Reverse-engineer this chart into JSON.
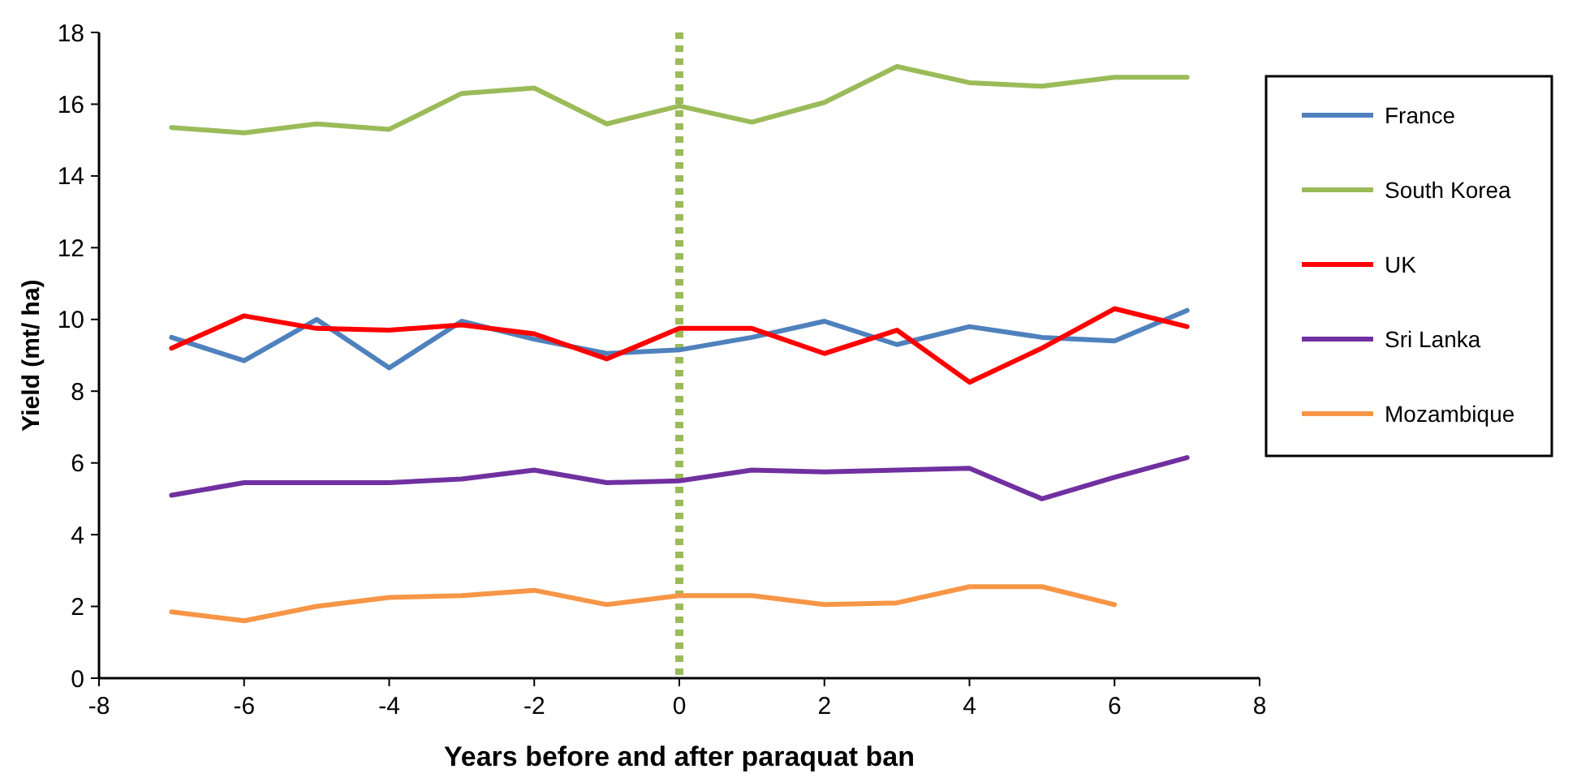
{
  "chart_data": {
    "type": "line",
    "xlabel": "Years before and after paraquat ban",
    "ylabel": "Yield (mt/ ha)",
    "x": [
      -7,
      -6,
      -5,
      -4,
      -3,
      -2,
      -1,
      0,
      1,
      2,
      3,
      4,
      5,
      6,
      7
    ],
    "series": [
      {
        "name": "France",
        "color": "#4f81bd",
        "values": [
          9.5,
          8.85,
          10.0,
          8.65,
          9.95,
          9.45,
          9.05,
          9.15,
          9.5,
          9.95,
          9.3,
          9.8,
          9.5,
          9.4,
          10.25
        ]
      },
      {
        "name": "South Korea",
        "color": "#9bbb59",
        "values": [
          15.35,
          15.2,
          15.45,
          15.3,
          16.3,
          16.45,
          15.45,
          15.95,
          15.5,
          16.05,
          17.05,
          16.6,
          16.5,
          16.75,
          16.75
        ]
      },
      {
        "name": "UK",
        "color": "#ff0000",
        "values": [
          9.2,
          10.1,
          9.75,
          9.7,
          9.85,
          9.6,
          8.9,
          9.75,
          9.75,
          9.05,
          9.7,
          8.25,
          9.2,
          10.3,
          9.8
        ]
      },
      {
        "name": "Sri Lanka",
        "color": "#7030a0",
        "values": [
          5.1,
          5.45,
          5.45,
          5.45,
          5.55,
          5.8,
          5.45,
          5.5,
          5.8,
          5.75,
          5.8,
          5.85,
          5.0,
          5.6,
          6.15
        ]
      },
      {
        "name": "Mozambique",
        "color": "#f79646",
        "values": [
          1.85,
          1.6,
          2.0,
          2.25,
          2.3,
          2.45,
          2.05,
          2.3,
          2.3,
          2.05,
          2.1,
          2.55,
          2.55,
          2.05,
          null
        ]
      }
    ],
    "xlim": [
      -8,
      8
    ],
    "xticks": [
      -8,
      -6,
      -4,
      -2,
      0,
      2,
      4,
      6,
      8
    ],
    "ylim": [
      0,
      18
    ],
    "yticks": [
      0,
      2,
      4,
      6,
      8,
      10,
      12,
      14,
      16,
      18
    ],
    "ref_lines": [
      {
        "axis": "x",
        "value": 0,
        "color": "#9bbb59",
        "line_style": "dotted"
      }
    ],
    "grid": false,
    "legend": "right",
    "marker": "none",
    "line_style": "solid"
  }
}
